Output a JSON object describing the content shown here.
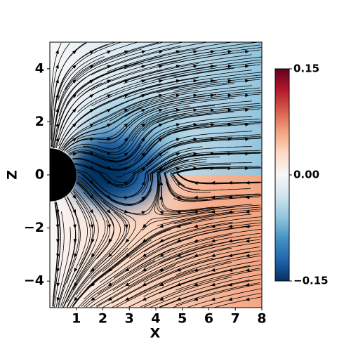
{
  "chart_data": {
    "type": "streamplot",
    "xlabel": "X",
    "ylabel": "Z",
    "xlim": [
      0,
      8
    ],
    "xticks": [
      1,
      2,
      3,
      4,
      5,
      6,
      7,
      8
    ],
    "ylim": [
      -5,
      5
    ],
    "yticks": [
      {
        "value": -4,
        "label": "−4"
      },
      {
        "value": -2,
        "label": "−2"
      },
      0,
      2,
      4
    ],
    "colorbar": {
      "lim": [
        -0.15,
        0.15
      ],
      "ticks": [
        {
          "value": -0.15,
          "label": "−0.15"
        },
        {
          "value": 0,
          "label": "0.00"
        },
        0.15
      ],
      "colormap": [
        "#053061",
        "#2166ac",
        "#4393c3",
        "#92c5de",
        "#d1e5f0",
        "#f7f7f7",
        "#fddbc7",
        "#f4a582",
        "#d6604d",
        "#b2182b",
        "#67001f"
      ]
    }
  }
}
